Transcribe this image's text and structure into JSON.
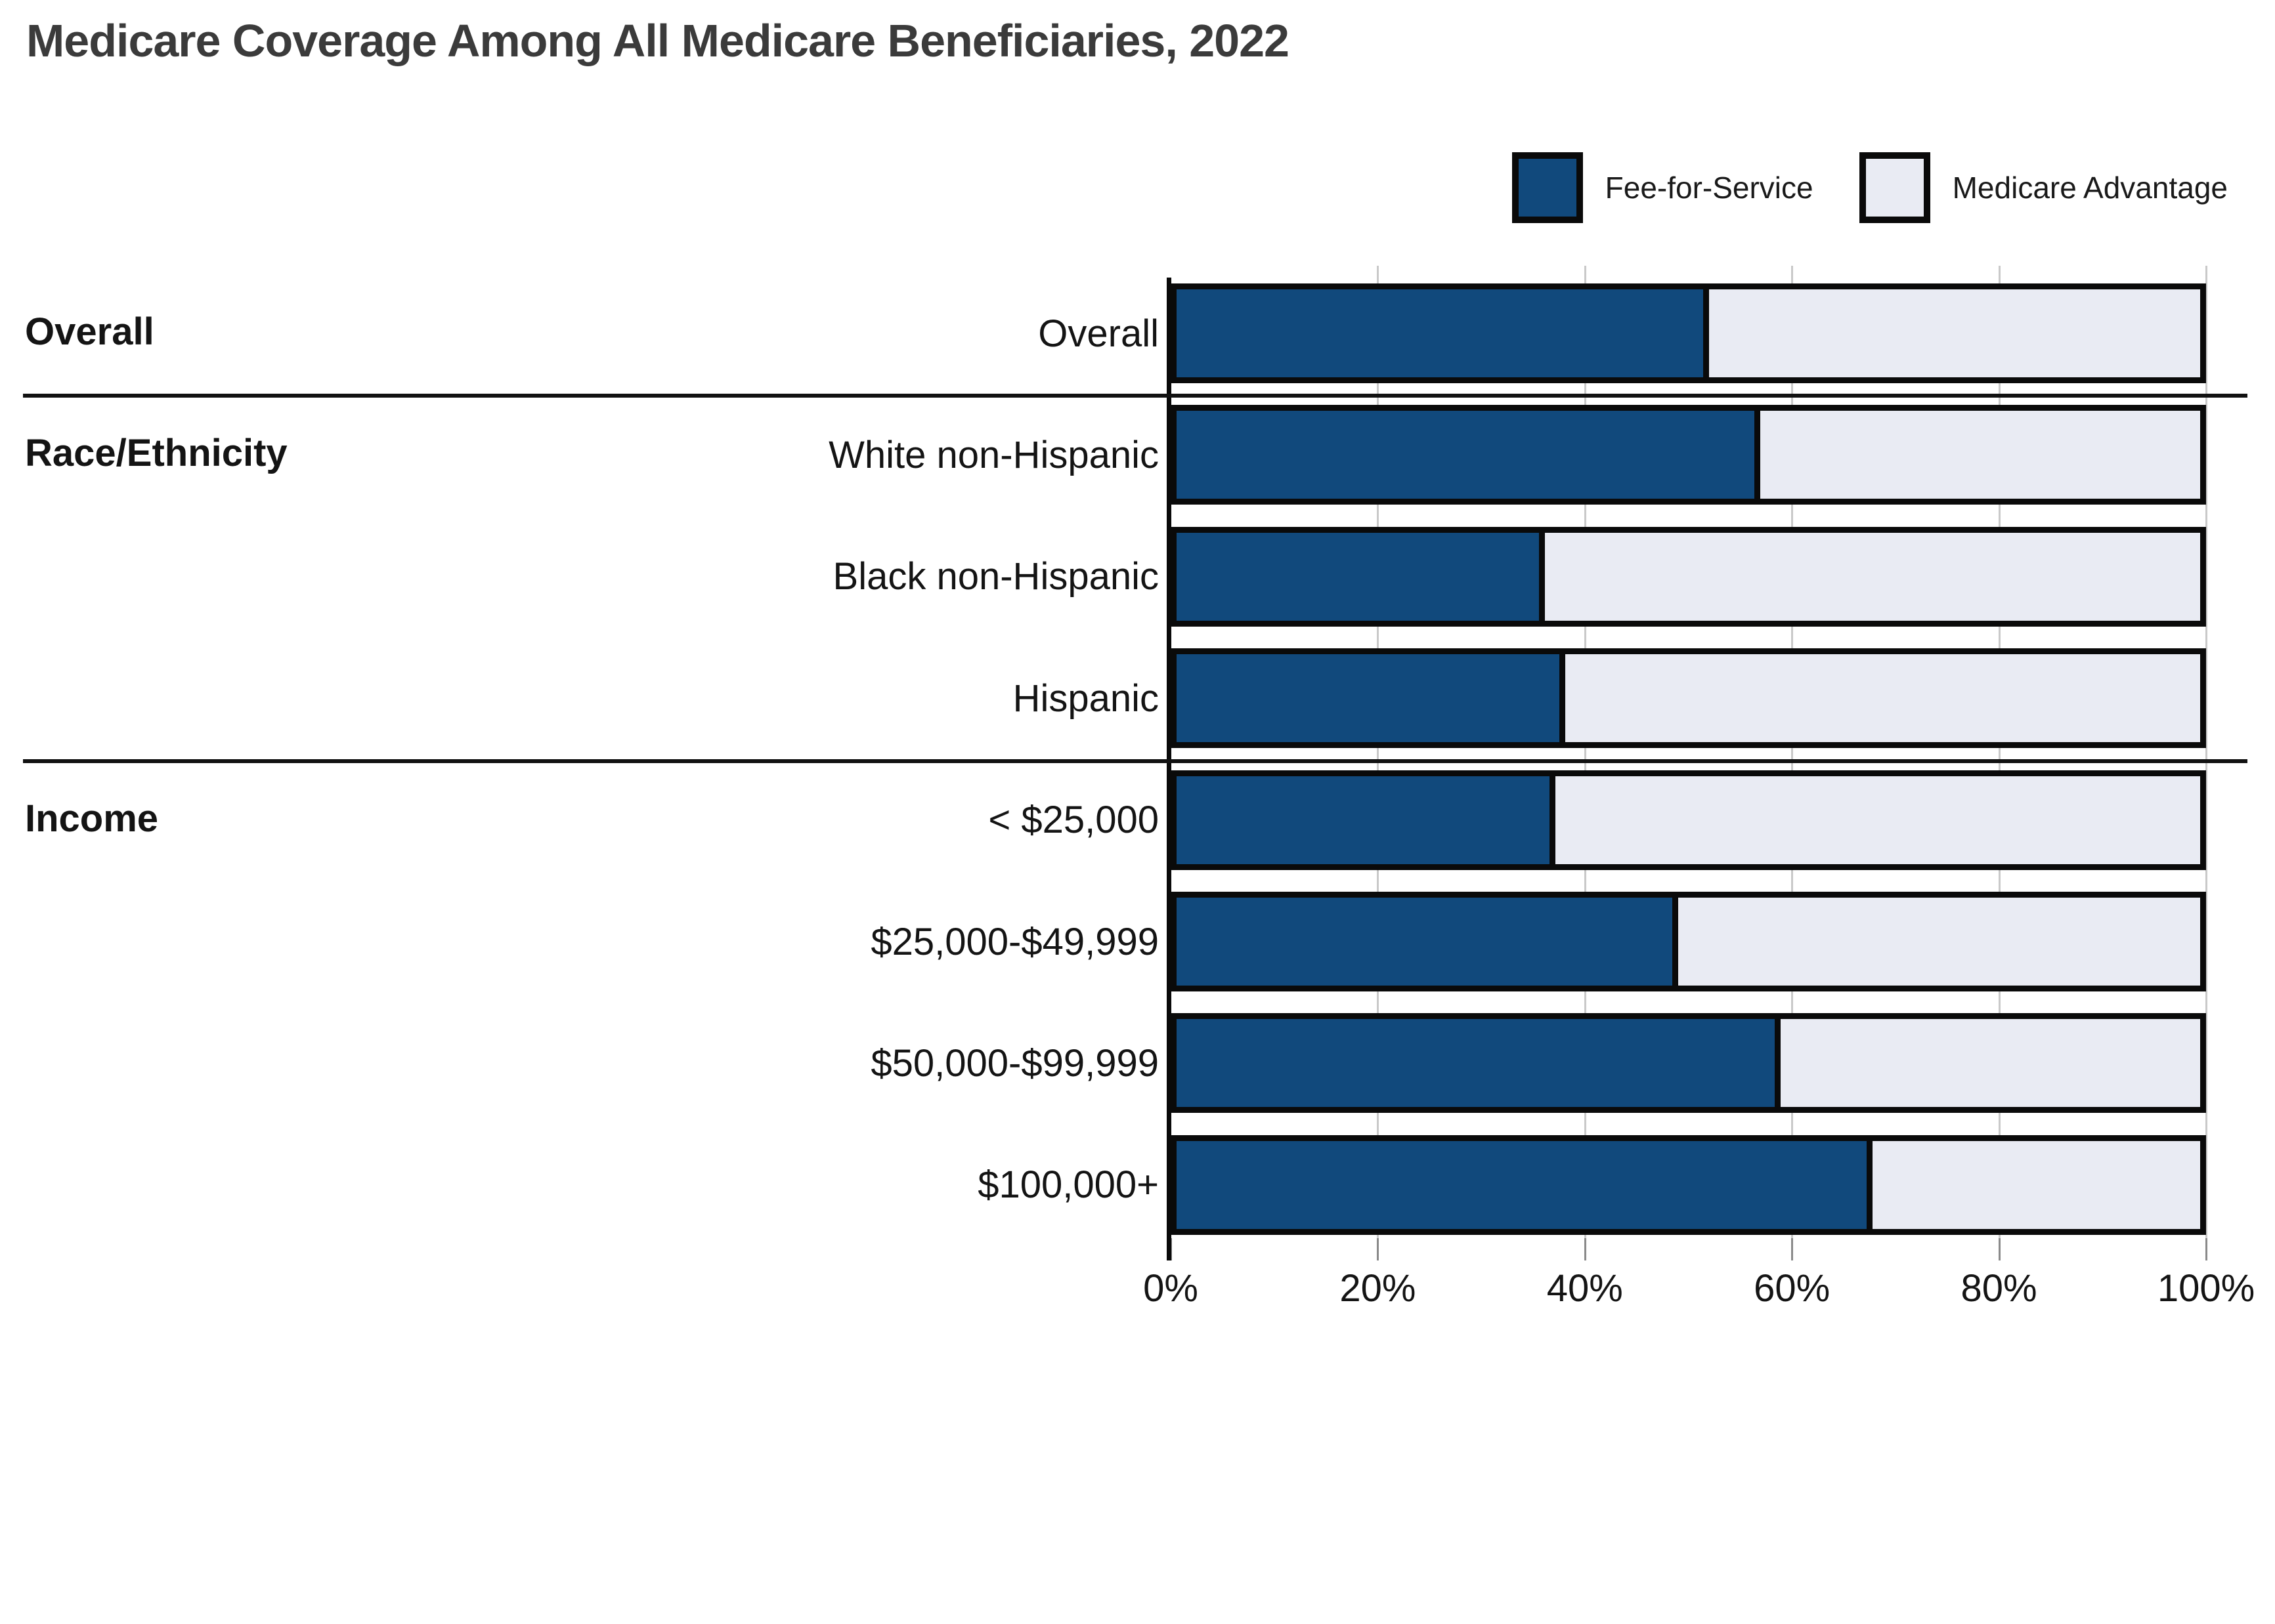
{
  "title": "Medicare Coverage Among All Medicare Beneficiaries, 2022",
  "legend": [
    {
      "label": "Fee-for-Service",
      "color": "#11497C"
    },
    {
      "label": "Medicare Advantage",
      "color": "#E9EBF3"
    }
  ],
  "colors": {
    "fee_for_service": "#11497C",
    "medicare_advantage": "#E9EBF3",
    "bar_border": "#0A0A0A",
    "gridline": "#C9C9C9",
    "title_text": "#3B3B3B"
  },
  "chart_data": {
    "type": "bar",
    "orientation": "horizontal",
    "stacked": true,
    "title": "Medicare Coverage Among All Medicare Beneficiaries, 2022",
    "xlabel": "",
    "ylabel": "",
    "xlim": [
      0,
      100
    ],
    "x_ticks": [
      "0%",
      "20%",
      "40%",
      "60%",
      "80%",
      "100%"
    ],
    "grid": true,
    "legend_position": "top-right",
    "categories": [
      "Overall",
      "White non-Hispanic",
      "Black non-Hispanic",
      "Hispanic",
      "< $25,000",
      "$25,000-$49,999",
      "$50,000-$99,999",
      "$100,000+"
    ],
    "series": [
      {
        "name": "Fee-for-Service",
        "values": [
          52,
          57,
          36,
          38,
          37,
          49,
          59,
          68
        ]
      },
      {
        "name": "Medicare Advantage",
        "values": [
          48,
          43,
          64,
          62,
          63,
          51,
          41,
          32
        ]
      }
    ],
    "sections": [
      {
        "header": "Overall",
        "rows": [
          {
            "label": "Overall",
            "ffs": 52,
            "ma": 48
          }
        ]
      },
      {
        "header": "Race/Ethnicity",
        "rows": [
          {
            "label": "White non-Hispanic",
            "ffs": 57,
            "ma": 43
          },
          {
            "label": "Black non-Hispanic",
            "ffs": 36,
            "ma": 64
          },
          {
            "label": "Hispanic",
            "ffs": 38,
            "ma": 62
          }
        ]
      },
      {
        "header": "Income",
        "rows": [
          {
            "label": "< $25,000",
            "ffs": 37,
            "ma": 63
          },
          {
            "label": "$25,000-$49,999",
            "ffs": 49,
            "ma": 51
          },
          {
            "label": "$50,000-$99,999",
            "ffs": 59,
            "ma": 41
          },
          {
            "label": "$100,000+",
            "ffs": 68,
            "ma": 32
          }
        ]
      }
    ]
  }
}
